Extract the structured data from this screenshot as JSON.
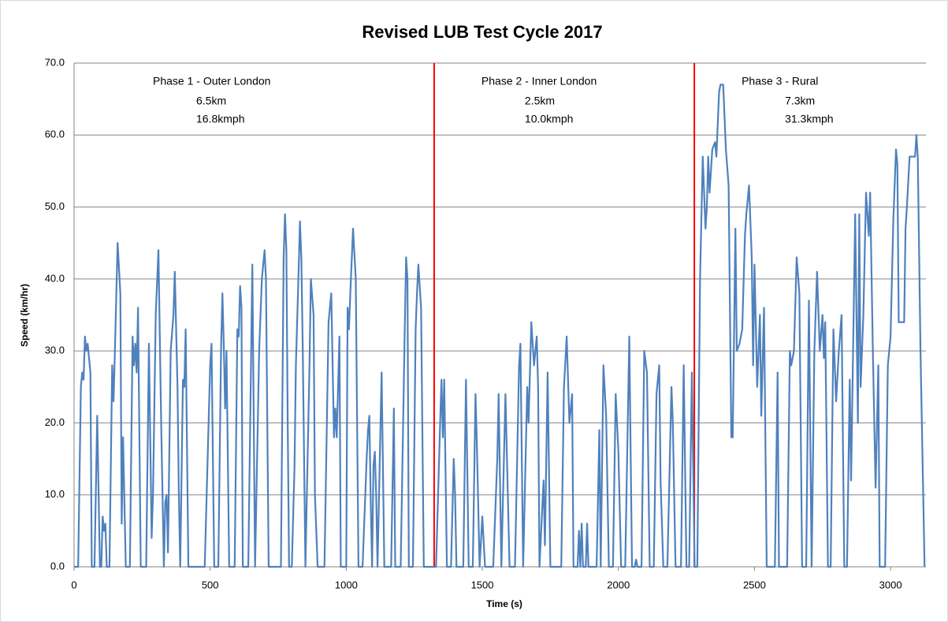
{
  "chart_data": {
    "type": "line",
    "title": "Revised LUB Test Cycle 2017",
    "xlabel": "Time (s)",
    "ylabel": "Speed (km/hr)",
    "xlim": [
      0,
      3130
    ],
    "ylim": [
      0,
      70
    ],
    "xticks": [
      0,
      500,
      1000,
      1500,
      2000,
      2500,
      3000
    ],
    "yticks": [
      {
        "value": 0,
        "label": "0.0"
      },
      {
        "value": 10,
        "label": "10.0"
      },
      {
        "value": 20,
        "label": "20.0"
      },
      {
        "value": 30,
        "label": "30.0"
      },
      {
        "value": 40,
        "label": "40.0"
      },
      {
        "value": 50,
        "label": "50.0"
      },
      {
        "value": 60,
        "label": "60.0"
      },
      {
        "value": 70,
        "label": "70.0"
      }
    ],
    "grid": true,
    "vlines": [
      {
        "x": 1323,
        "color": "#ff0000"
      },
      {
        "x": 2279,
        "color": "#ff0000"
      }
    ],
    "phases": [
      {
        "label": "Phase 1 - Outer London",
        "distance": "6.5km",
        "speed": "16.8kmph"
      },
      {
        "label": "Phase 2 - Inner London",
        "distance": "2.5km",
        "speed": "10.0kmph"
      },
      {
        "label": "Phase 3 - Rural",
        "distance": "7.3km",
        "speed": "31.3kmph"
      }
    ],
    "x": [
      0,
      15,
      25,
      30,
      35,
      40,
      45,
      50,
      55,
      60,
      65,
      75,
      85,
      95,
      100,
      105,
      110,
      115,
      120,
      130,
      140,
      145,
      150,
      160,
      170,
      175,
      180,
      190,
      205,
      215,
      220,
      225,
      230,
      235,
      245,
      265,
      275,
      285,
      290,
      300,
      310,
      320,
      330,
      335,
      340,
      345,
      355,
      365,
      370,
      380,
      385,
      390,
      400,
      405,
      410,
      420,
      480,
      490,
      500,
      505,
      515,
      530,
      540,
      545,
      550,
      555,
      560,
      570,
      590,
      600,
      605,
      610,
      615,
      620,
      640,
      655,
      665,
      680,
      690,
      700,
      705,
      715,
      760,
      770,
      775,
      780,
      785,
      790,
      800,
      810,
      815,
      825,
      830,
      835,
      840,
      850,
      865,
      870,
      880,
      885,
      895,
      920,
      935,
      945,
      955,
      960,
      965,
      975,
      980,
      1000,
      1005,
      1010,
      1015,
      1025,
      1035,
      1045,
      1060,
      1075,
      1080,
      1085,
      1090,
      1095,
      1100,
      1105,
      1110,
      1115,
      1130,
      1140,
      1165,
      1175,
      1180,
      1200,
      1215,
      1220,
      1225,
      1230,
      1245,
      1255,
      1260,
      1265,
      1275,
      1285,
      1320,
      1330,
      1345,
      1350,
      1355,
      1360,
      1370,
      1385,
      1395,
      1400,
      1405,
      1430,
      1440,
      1450,
      1465,
      1475,
      1480,
      1490,
      1500,
      1510,
      1540,
      1555,
      1560,
      1570,
      1585,
      1590,
      1600,
      1620,
      1635,
      1640,
      1650,
      1665,
      1670,
      1680,
      1690,
      1700,
      1705,
      1710,
      1725,
      1730,
      1740,
      1750,
      1790,
      1800,
      1810,
      1820,
      1830,
      1835,
      1850,
      1855,
      1860,
      1865,
      1870,
      1880,
      1885,
      1890,
      1920,
      1930,
      1935,
      1945,
      1955,
      1965,
      1980,
      1990,
      2000,
      2010,
      2025,
      2040,
      2050,
      2060,
      2065,
      2070,
      2085,
      2095,
      2105,
      2115,
      2130,
      2140,
      2150,
      2155,
      2165,
      2180,
      2195,
      2200,
      2210,
      2230,
      2240,
      2250,
      2260,
      2270,
      2280,
      2290,
      2300,
      2310,
      2320,
      2325,
      2330,
      2335,
      2345,
      2355,
      2360,
      2370,
      2375,
      2385,
      2395,
      2405,
      2415,
      2420,
      2430,
      2435,
      2445,
      2455,
      2465,
      2470,
      2480,
      2490,
      2495,
      2500,
      2510,
      2520,
      2525,
      2535,
      2545,
      2560,
      2575,
      2585,
      2590,
      2620,
      2630,
      2635,
      2645,
      2655,
      2665,
      2675,
      2690,
      2700,
      2710,
      2720,
      2730,
      2740,
      2750,
      2755,
      2760,
      2770,
      2780,
      2790,
      2800,
      2810,
      2820,
      2830,
      2840,
      2850,
      2855,
      2870,
      2880,
      2885,
      2890,
      2900,
      2910,
      2920,
      2925,
      2935,
      2945,
      2955,
      2960,
      2980,
      2990,
      3000,
      3010,
      3020,
      3025,
      3030,
      3050,
      3055,
      3060,
      3070,
      3090,
      3095,
      3100,
      3110,
      3125
    ],
    "series": [
      {
        "name": "Speed",
        "color": "#4f81bd",
        "values": [
          0,
          0,
          25,
          27,
          26,
          32,
          30,
          31,
          29,
          27,
          0,
          0,
          21,
          0,
          0,
          7,
          5,
          6,
          0,
          0,
          28,
          23,
          30,
          45,
          38,
          6,
          18,
          0,
          0,
          32,
          28,
          31,
          27,
          36,
          0,
          0,
          31,
          4,
          10,
          35,
          44,
          20,
          0,
          9,
          10,
          2,
          30,
          35,
          41,
          25,
          10,
          0,
          26,
          25,
          33,
          0,
          0,
          14,
          28,
          31,
          0,
          0,
          30,
          38,
          31,
          22,
          30,
          0,
          0,
          33,
          32,
          39,
          36,
          0,
          0,
          42,
          0,
          30,
          40,
          44,
          40,
          0,
          0,
          43,
          49,
          44,
          20,
          0,
          0,
          14,
          28,
          41,
          48,
          43,
          31,
          0,
          28,
          40,
          35,
          10,
          0,
          0,
          34,
          38,
          18,
          22,
          18,
          32,
          0,
          0,
          36,
          33,
          38,
          47,
          40,
          0,
          0,
          15,
          19,
          21,
          9,
          0,
          14,
          16,
          10,
          0,
          27,
          0,
          0,
          22,
          0,
          0,
          33,
          43,
          40,
          0,
          0,
          33,
          38,
          42,
          36,
          0,
          0,
          0,
          20,
          26,
          18,
          26,
          0,
          0,
          15,
          10,
          0,
          0,
          26,
          0,
          0,
          24,
          17,
          0,
          7,
          0,
          0,
          15,
          24,
          0,
          24,
          16,
          0,
          0,
          28,
          31,
          0,
          25,
          20,
          34,
          28,
          32,
          25,
          0,
          12,
          3,
          27,
          0,
          0,
          25,
          32,
          20,
          24,
          0,
          0,
          5,
          0,
          6,
          0,
          0,
          6,
          0,
          0,
          19,
          0,
          28,
          21,
          0,
          0,
          24,
          16,
          0,
          0,
          32,
          0,
          0,
          1,
          0,
          0,
          30,
          27,
          0,
          0,
          24,
          28,
          12,
          0,
          0,
          25,
          20,
          0,
          0,
          28,
          0,
          0,
          27,
          0,
          0,
          40,
          57,
          47,
          50,
          57,
          52,
          58,
          59,
          57,
          66,
          67,
          67,
          58,
          53,
          18,
          18,
          47,
          30,
          31,
          33,
          46,
          49,
          53,
          43,
          28,
          42,
          25,
          35,
          21,
          36,
          0,
          0,
          0,
          27,
          0,
          0,
          30,
          28,
          30,
          43,
          38,
          0,
          0,
          37,
          0,
          30,
          41,
          30,
          35,
          29,
          34,
          0,
          0,
          33,
          23,
          30,
          35,
          0,
          0,
          26,
          12,
          49,
          20,
          49,
          25,
          35,
          52,
          46,
          52,
          30,
          11,
          28,
          0,
          0,
          28,
          32,
          48,
          58,
          56,
          34,
          34,
          47,
          50,
          57,
          57,
          60,
          57,
          30,
          0
        ]
      }
    ]
  }
}
